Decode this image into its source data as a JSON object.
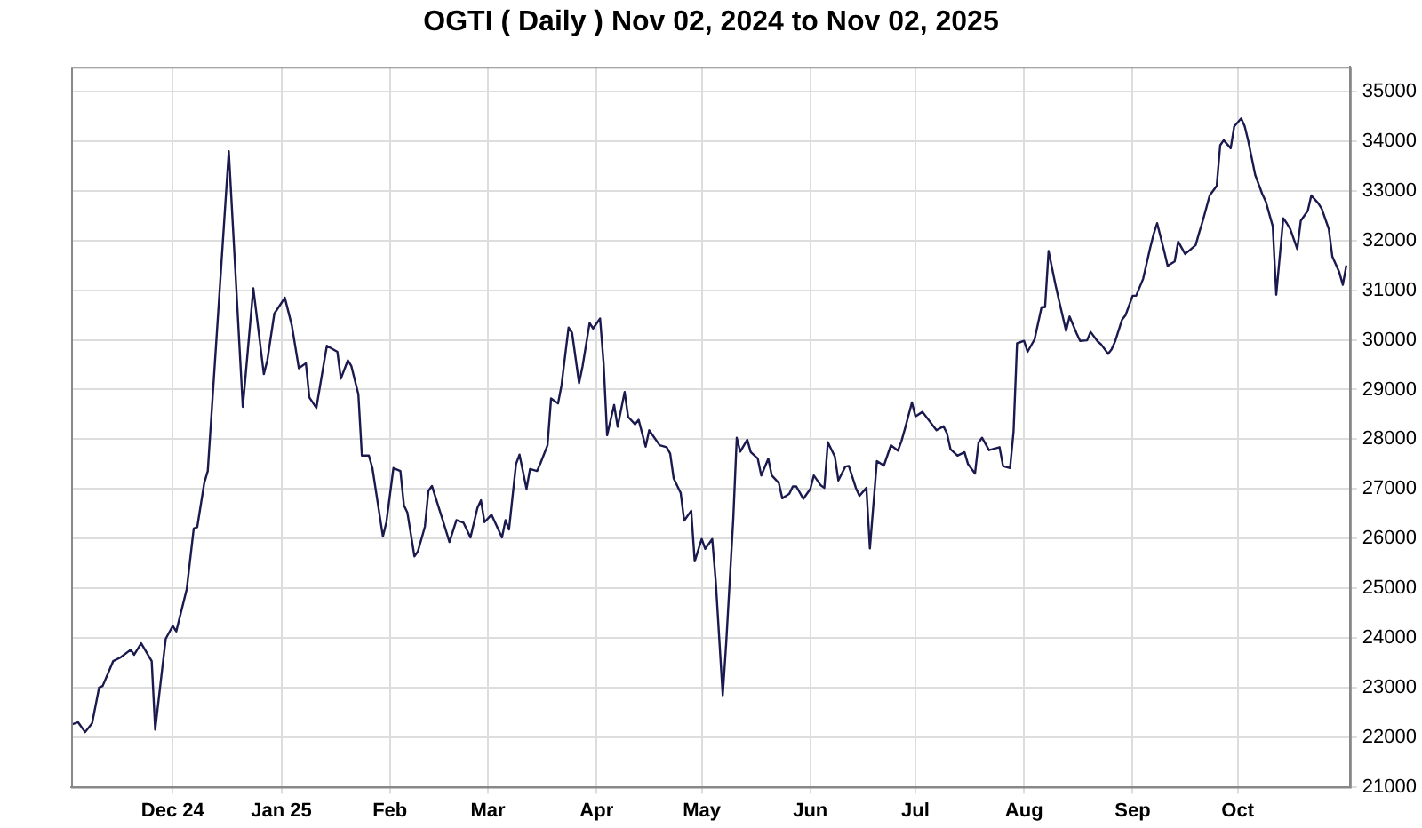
{
  "chart_data": {
    "type": "line",
    "title": "OGTI ( Daily ) Nov 02, 2024 to Nov 02, 2025",
    "x": [
      "2024-11-02",
      "2024-11-04",
      "2024-11-06",
      "2024-11-08",
      "2024-11-10",
      "2024-11-11",
      "2024-11-14",
      "2024-11-16",
      "2024-11-19",
      "2024-11-20",
      "2024-11-22",
      "2024-11-25",
      "2024-11-26",
      "2024-11-28",
      "2024-11-29",
      "2024-12-01",
      "2024-12-02",
      "2024-12-05",
      "2024-12-07",
      "2024-12-08",
      "2024-12-10",
      "2024-12-11",
      "2024-12-17",
      "2024-12-21",
      "2024-12-24",
      "2024-12-27",
      "2024-12-28",
      "2024-12-30",
      "2025-01-02",
      "2025-01-04",
      "2025-01-06",
      "2025-01-08",
      "2025-01-09",
      "2025-01-11",
      "2025-01-13",
      "2025-01-14",
      "2025-01-17",
      "2025-01-18",
      "2025-01-20",
      "2025-01-21",
      "2025-01-23",
      "2025-01-24",
      "2025-01-26",
      "2025-01-27",
      "2025-01-30",
      "2025-01-31",
      "2025-02-02",
      "2025-02-04",
      "2025-02-05",
      "2025-02-06",
      "2025-02-08",
      "2025-02-09",
      "2025-02-11",
      "2025-02-12",
      "2025-02-13",
      "2025-02-16",
      "2025-02-18",
      "2025-02-20",
      "2025-02-22",
      "2025-02-24",
      "2025-02-26",
      "2025-02-27",
      "2025-02-28",
      "2025-03-02",
      "2025-03-05",
      "2025-03-06",
      "2025-03-07",
      "2025-03-09",
      "2025-03-10",
      "2025-03-12",
      "2025-03-13",
      "2025-03-15",
      "2025-03-16",
      "2025-03-18",
      "2025-03-19",
      "2025-03-21",
      "2025-03-22",
      "2025-03-24",
      "2025-03-25",
      "2025-03-27",
      "2025-03-28",
      "2025-03-30",
      "2025-03-31",
      "2025-04-02",
      "2025-04-03",
      "2025-04-04",
      "2025-04-06",
      "2025-04-07",
      "2025-04-09",
      "2025-04-10",
      "2025-04-12",
      "2025-04-13",
      "2025-04-15",
      "2025-04-16",
      "2025-04-19",
      "2025-04-21",
      "2025-04-22",
      "2025-04-23",
      "2025-04-25",
      "2025-04-26",
      "2025-04-28",
      "2025-04-29",
      "2025-05-01",
      "2025-05-02",
      "2025-05-04",
      "2025-05-05",
      "2025-05-07",
      "2025-05-08",
      "2025-05-10",
      "2025-05-11",
      "2025-05-12",
      "2025-05-14",
      "2025-05-15",
      "2025-05-17",
      "2025-05-18",
      "2025-05-20",
      "2025-05-21",
      "2025-05-23",
      "2025-05-24",
      "2025-05-26",
      "2025-05-27",
      "2025-05-28",
      "2025-05-30",
      "2025-06-01",
      "2025-06-02",
      "2025-06-04",
      "2025-06-05",
      "2025-06-06",
      "2025-06-08",
      "2025-06-09",
      "2025-06-11",
      "2025-06-12",
      "2025-06-14",
      "2025-06-15",
      "2025-06-17",
      "2025-06-18",
      "2025-06-20",
      "2025-06-22",
      "2025-06-24",
      "2025-06-26",
      "2025-06-27",
      "2025-06-28",
      "2025-06-30",
      "2025-07-01",
      "2025-07-03",
      "2025-07-07",
      "2025-07-09",
      "2025-07-10",
      "2025-07-11",
      "2025-07-13",
      "2025-07-15",
      "2025-07-16",
      "2025-07-18",
      "2025-07-19",
      "2025-07-20",
      "2025-07-22",
      "2025-07-25",
      "2025-07-26",
      "2025-07-28",
      "2025-07-29",
      "2025-07-30",
      "2025-08-01",
      "2025-08-02",
      "2025-08-04",
      "2025-08-06",
      "2025-08-07",
      "2025-08-08",
      "2025-08-10",
      "2025-08-11",
      "2025-08-13",
      "2025-08-14",
      "2025-08-16",
      "2025-08-17",
      "2025-08-19",
      "2025-08-20",
      "2025-08-22",
      "2025-08-23",
      "2025-08-25",
      "2025-08-26",
      "2025-08-27",
      "2025-08-29",
      "2025-08-30",
      "2025-09-01",
      "2025-09-02",
      "2025-09-04",
      "2025-09-06",
      "2025-09-07",
      "2025-09-08",
      "2025-09-10",
      "2025-09-11",
      "2025-09-13",
      "2025-09-14",
      "2025-09-16",
      "2025-09-17",
      "2025-09-19",
      "2025-09-20",
      "2025-09-21",
      "2025-09-23",
      "2025-09-25",
      "2025-09-26",
      "2025-09-27",
      "2025-09-29",
      "2025-09-30",
      "2025-10-02",
      "2025-10-03",
      "2025-10-04",
      "2025-10-06",
      "2025-10-08",
      "2025-10-09",
      "2025-10-11",
      "2025-10-12",
      "2025-10-14",
      "2025-10-15",
      "2025-10-16",
      "2025-10-18",
      "2025-10-19",
      "2025-10-21",
      "2025-10-22",
      "2025-10-24",
      "2025-10-25",
      "2025-10-27",
      "2025-10-28",
      "2025-10-30",
      "2025-10-31",
      "2025-11-01"
    ],
    "series": [
      {
        "color": "#1a1a4e",
        "values": [
          22250,
          22300,
          22100,
          22280,
          23000,
          23030,
          23530,
          23600,
          23760,
          23660,
          23890,
          23530,
          22150,
          23380,
          23980,
          24240,
          24130,
          24980,
          26200,
          26230,
          27120,
          27360,
          33800,
          28650,
          31040,
          29310,
          29590,
          30530,
          30850,
          30290,
          29430,
          29530,
          28840,
          28630,
          29470,
          29880,
          29760,
          29220,
          29590,
          29470,
          28900,
          27670,
          27670,
          27420,
          26040,
          26330,
          27420,
          27360,
          26670,
          26520,
          25640,
          25740,
          26240,
          26960,
          27060,
          26390,
          25930,
          26370,
          26320,
          26020,
          26620,
          26770,
          26330,
          26480,
          26020,
          26370,
          26180,
          27500,
          27690,
          27000,
          27400,
          27360,
          27520,
          27880,
          28820,
          28720,
          29090,
          30250,
          30140,
          29130,
          29470,
          30340,
          30230,
          30430,
          29530,
          28080,
          28690,
          28250,
          28950,
          28450,
          28300,
          28390,
          27850,
          28180,
          27880,
          27840,
          27710,
          27210,
          26920,
          26360,
          26560,
          25540,
          25990,
          25790,
          25990,
          25140,
          22840,
          23910,
          26390,
          28030,
          27750,
          27990,
          27740,
          27610,
          27270,
          27610,
          27270,
          27120,
          26810,
          26900,
          27050,
          27050,
          26800,
          27000,
          27270,
          27070,
          27020,
          27940,
          27650,
          27170,
          27450,
          27460,
          27020,
          26860,
          27020,
          25800,
          27560,
          27470,
          27880,
          27770,
          27960,
          28210,
          28740,
          28460,
          28550,
          28180,
          28260,
          28120,
          27800,
          27670,
          27740,
          27500,
          27310,
          27930,
          28030,
          27780,
          27840,
          27460,
          27420,
          28150,
          29930,
          29980,
          29760,
          30010,
          30660,
          30660,
          31790,
          31100,
          30790,
          30180,
          30470,
          30130,
          29980,
          29990,
          30160,
          29970,
          29910,
          29720,
          29810,
          29970,
          30410,
          30500,
          30890,
          30890,
          31230,
          31850,
          32130,
          32350,
          31790,
          31490,
          31580,
          31980,
          31730,
          31790,
          31910,
          32160,
          32390,
          32910,
          33100,
          33920,
          34020,
          33860,
          34300,
          34460,
          34300,
          34010,
          33320,
          32940,
          32790,
          32290,
          30910,
          32450,
          32350,
          32230,
          31830,
          32400,
          32600,
          32910,
          32750,
          32640,
          32230,
          31680,
          31360,
          31110,
          31500
        ]
      }
    ],
    "xlim": [
      "2024-11-02",
      "2025-11-02"
    ],
    "xticks": [
      {
        "value": "2024-12-01",
        "label": "Dec 24"
      },
      {
        "value": "2025-01-01",
        "label": "Jan 25"
      },
      {
        "value": "2025-02-01",
        "label": "Feb"
      },
      {
        "value": "2025-03-01",
        "label": "Mar"
      },
      {
        "value": "2025-04-01",
        "label": "Apr"
      },
      {
        "value": "2025-05-01",
        "label": "May"
      },
      {
        "value": "2025-06-01",
        "label": "Jun"
      },
      {
        "value": "2025-07-01",
        "label": "Jul"
      },
      {
        "value": "2025-08-01",
        "label": "Aug"
      },
      {
        "value": "2025-09-01",
        "label": "Sep"
      },
      {
        "value": "2025-10-01",
        "label": "Oct"
      }
    ],
    "ylim": [
      21000,
      35500
    ],
    "yticks": [
      21000,
      22000,
      23000,
      24000,
      25000,
      26000,
      27000,
      28000,
      29000,
      30000,
      31000,
      32000,
      33000,
      34000,
      35000
    ],
    "grid": true,
    "legend": false,
    "marker": "none",
    "line_style": "solid"
  }
}
